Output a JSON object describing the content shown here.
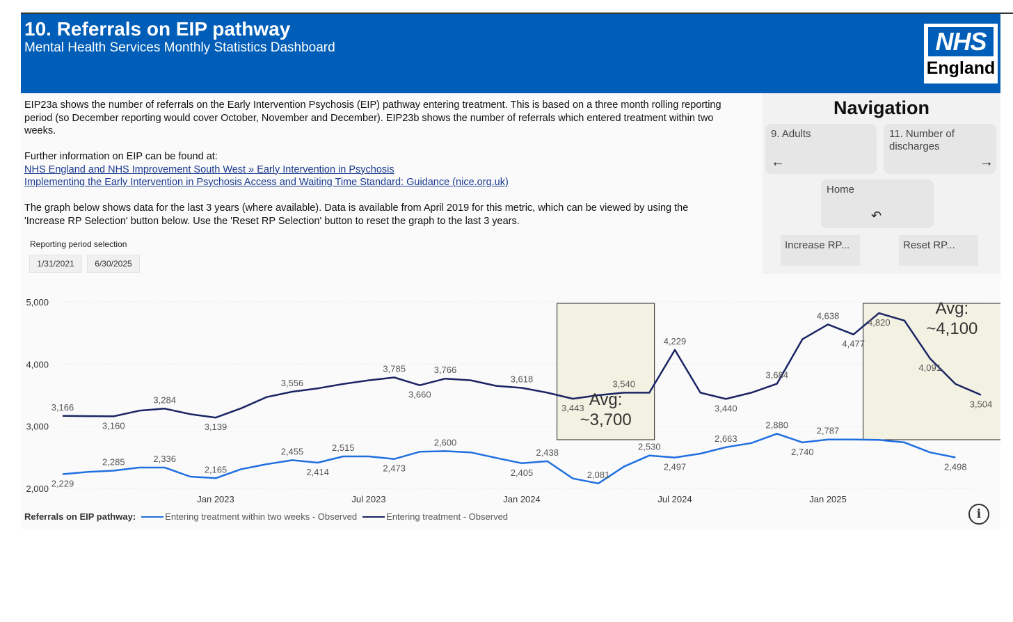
{
  "header": {
    "title": "10. Referrals on EIP pathway",
    "subtitle": "Mental Health Services Monthly Statistics Dashboard",
    "logo_top": "NHS",
    "logo_bottom": "England"
  },
  "description": {
    "para1_line1": "EIP23a shows the number of referrals on the Early Intervention Psychosis (EIP) pathway entering treatment. This is based on a three month rolling reporting",
    "para1_line2": "period (so December reporting would cover October, November and December). EIP23b shows the number of referrals which entered treatment within two",
    "para1_line3": "weeks.",
    "further_info": "Further information on EIP can be found at:",
    "link1": "NHS England and NHS Improvement South West » Early Intervention in Psychosis",
    "link2": "Implementing the Early Intervention in Psychosis Access and Waiting Time Standard: Guidance (nice.org.uk)",
    "para2_line1": "The graph below shows data for the last 3 years (where available). Data is available from April 2019 for this metric, which can be viewed by using the",
    "para2_line2": "'Increase RP Selection' button below. Use the 'Reset RP Selection' button to reset the graph to the last 3 years."
  },
  "navigation": {
    "title": "Navigation",
    "prev_label": "9. Adults",
    "next_label": "11. Number of discharges",
    "home_label": "Home",
    "prev_icon": "arrow-left-icon",
    "next_icon": "arrow-right-icon",
    "home_icon": "undo-icon",
    "increase_rp": "Increase RP...",
    "reset_rp": "Reset RP..."
  },
  "rp_selection": {
    "label": "Reporting period selection",
    "start": "1/31/2021",
    "end": "6/30/2025"
  },
  "legend": {
    "title": "Referrals on EIP pathway:",
    "series1": "Entering treatment within two weeks - Observed",
    "series2": "Entering treatment - Observed"
  },
  "info_icon": "info-icon",
  "colors": {
    "nhs_blue": "#005eb8",
    "dark_series": "#1b2463",
    "light_series": "#1f6fe0",
    "highlight_fill": "#f3f1e2"
  },
  "chart_data": {
    "type": "line",
    "ylim": [
      2000,
      5000
    ],
    "yticks": [
      "2,000",
      "3,000",
      "4,000",
      "5,000"
    ],
    "xtick_labels": [
      "Jan 2023",
      "Jul 2023",
      "Jan 2024",
      "Jul 2024",
      "Jan 2025"
    ],
    "x": [
      "Jul 2022",
      "Aug 2022",
      "Sep 2022",
      "Oct 2022",
      "Nov 2022",
      "Dec 2022",
      "Jan 2023",
      "Feb 2023",
      "Mar 2023",
      "Apr 2023",
      "May 2023",
      "Jun 2023",
      "Jul 2023",
      "Aug 2023",
      "Sep 2023",
      "Oct 2023",
      "Nov 2023",
      "Dec 2023",
      "Jan 2024",
      "Feb 2024",
      "Mar 2024",
      "Apr 2024",
      "May 2024",
      "Jun 2024",
      "Jul 2024",
      "Aug 2024",
      "Sep 2024",
      "Oct 2024",
      "Nov 2024",
      "Dec 2024",
      "Jan 2025",
      "Feb 2025",
      "Mar 2025",
      "Apr 2025",
      "May 2025",
      "Jun 2025",
      "Jul 2025"
    ],
    "series": [
      {
        "name": "Entering treatment - Observed",
        "values": [
          3166,
          3163,
          3160,
          3250,
          3284,
          3195,
          3139,
          3290,
          3470,
          3556,
          3610,
          3680,
          3740,
          3785,
          3660,
          3766,
          3740,
          3650,
          3618,
          3540,
          3443,
          3500,
          3540,
          3540,
          4229,
          3540,
          3440,
          3540,
          3684,
          4400,
          4638,
          4477,
          4820,
          4700,
          4091,
          3680,
          3504
        ]
      },
      {
        "name": "Entering treatment within two weeks - Observed",
        "values": [
          2229,
          2265,
          2285,
          2336,
          2336,
          2190,
          2165,
          2310,
          2390,
          2455,
          2414,
          2515,
          2515,
          2473,
          2590,
          2600,
          2580,
          2490,
          2405,
          2438,
          2160,
          2081,
          2350,
          2530,
          2497,
          2560,
          2663,
          2730,
          2880,
          2740,
          2787,
          2787,
          2780,
          2740,
          2580,
          2498,
          null
        ]
      }
    ],
    "data_labels": [
      {
        "series": 0,
        "index": 0,
        "text": "3,166",
        "pos": "above"
      },
      {
        "series": 0,
        "index": 2,
        "text": "3,160",
        "pos": "below"
      },
      {
        "series": 0,
        "index": 4,
        "text": "3,284",
        "pos": "above"
      },
      {
        "series": 0,
        "index": 6,
        "text": "3,139",
        "pos": "below"
      },
      {
        "series": 0,
        "index": 9,
        "text": "3,556",
        "pos": "above"
      },
      {
        "series": 0,
        "index": 13,
        "text": "3,785",
        "pos": "above"
      },
      {
        "series": 0,
        "index": 14,
        "text": "3,660",
        "pos": "below"
      },
      {
        "series": 0,
        "index": 15,
        "text": "3,766",
        "pos": "above"
      },
      {
        "series": 0,
        "index": 18,
        "text": "3,618",
        "pos": "above"
      },
      {
        "series": 0,
        "index": 20,
        "text": "3,443",
        "pos": "below"
      },
      {
        "series": 0,
        "index": 22,
        "text": "3,540",
        "pos": "above"
      },
      {
        "series": 0,
        "index": 24,
        "text": "4,229",
        "pos": "above"
      },
      {
        "series": 0,
        "index": 26,
        "text": "3,440",
        "pos": "below"
      },
      {
        "series": 0,
        "index": 28,
        "text": "3,684",
        "pos": "above"
      },
      {
        "series": 0,
        "index": 30,
        "text": "4,638",
        "pos": "above"
      },
      {
        "series": 0,
        "index": 31,
        "text": "4,477",
        "pos": "below"
      },
      {
        "series": 0,
        "index": 32,
        "text": "4,820",
        "pos": "below"
      },
      {
        "series": 0,
        "index": 34,
        "text": "4,091",
        "pos": "below"
      },
      {
        "series": 0,
        "index": 36,
        "text": "3,504",
        "pos": "below"
      },
      {
        "series": 1,
        "index": 0,
        "text": "2,229",
        "pos": "below"
      },
      {
        "series": 1,
        "index": 2,
        "text": "2,285",
        "pos": "above"
      },
      {
        "series": 1,
        "index": 4,
        "text": "2,336",
        "pos": "above"
      },
      {
        "series": 1,
        "index": 6,
        "text": "2,165",
        "pos": "above"
      },
      {
        "series": 1,
        "index": 9,
        "text": "2,455",
        "pos": "above"
      },
      {
        "series": 1,
        "index": 10,
        "text": "2,414",
        "pos": "below"
      },
      {
        "series": 1,
        "index": 11,
        "text": "2,515",
        "pos": "above"
      },
      {
        "series": 1,
        "index": 13,
        "text": "2,473",
        "pos": "below"
      },
      {
        "series": 1,
        "index": 15,
        "text": "2,600",
        "pos": "above"
      },
      {
        "series": 1,
        "index": 18,
        "text": "2,405",
        "pos": "below"
      },
      {
        "series": 1,
        "index": 19,
        "text": "2,438",
        "pos": "above"
      },
      {
        "series": 1,
        "index": 21,
        "text": "2,081",
        "pos": "above"
      },
      {
        "series": 1,
        "index": 23,
        "text": "2,530",
        "pos": "above"
      },
      {
        "series": 1,
        "index": 24,
        "text": "2,497",
        "pos": "below"
      },
      {
        "series": 1,
        "index": 26,
        "text": "2,663",
        "pos": "above"
      },
      {
        "series": 1,
        "index": 28,
        "text": "2,880",
        "pos": "above"
      },
      {
        "series": 1,
        "index": 29,
        "text": "2,740",
        "pos": "below"
      },
      {
        "series": 1,
        "index": 30,
        "text": "2,787",
        "pos": "above"
      },
      {
        "series": 1,
        "index": 35,
        "text": "2,498",
        "pos": "below"
      }
    ],
    "annotations": [
      {
        "from": 20,
        "to": 23,
        "line1": "Avg:",
        "line2": "~3,700",
        "text_pos": "lower"
      },
      {
        "from": 32,
        "to": 37,
        "line1": "Avg:",
        "line2": "~4,100",
        "text_pos": "upper"
      }
    ],
    "grid": true,
    "legend_position": "bottom-left"
  }
}
